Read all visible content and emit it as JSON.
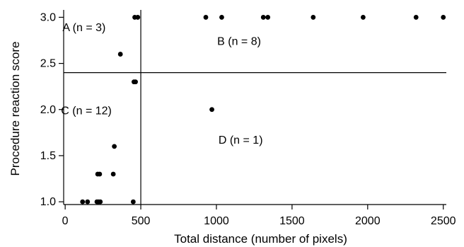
{
  "chart_data": {
    "type": "scatter",
    "xlabel": "Total distance (number of pixels)",
    "ylabel": "Procedure reaction score",
    "xlim": [
      -10,
      2520
    ],
    "ylim": [
      0.97,
      3.08
    ],
    "x_ticks": [
      0,
      500,
      1000,
      1500,
      2000,
      2500
    ],
    "y_ticks": [
      1.0,
      1.5,
      2.0,
      2.5,
      3.0
    ],
    "x_tick_labels": [
      "0",
      "500",
      "1000",
      "1500",
      "2000",
      "2500"
    ],
    "y_tick_labels": [
      "1.0",
      "1.5",
      "2.0",
      "2.5",
      "3.0"
    ],
    "grid": false,
    "reference_lines": {
      "vertical_x": 500,
      "horizontal_y": 2.4
    },
    "quadrant_labels": [
      {
        "label": "A (n = 3)",
        "x": 125,
        "y": 2.85
      },
      {
        "label": "B (n = 8)",
        "x": 1150,
        "y": 2.7
      },
      {
        "label": "C (n = 12)",
        "x": 140,
        "y": 1.95
      },
      {
        "label": "D (n = 1)",
        "x": 1160,
        "y": 1.63
      }
    ],
    "points": [
      {
        "x": 460,
        "y": 3.0
      },
      {
        "x": 480,
        "y": 3.0
      },
      {
        "x": 930,
        "y": 3.0
      },
      {
        "x": 1035,
        "y": 3.0
      },
      {
        "x": 1310,
        "y": 3.0
      },
      {
        "x": 1340,
        "y": 3.0
      },
      {
        "x": 1640,
        "y": 3.0
      },
      {
        "x": 1970,
        "y": 3.0
      },
      {
        "x": 2320,
        "y": 3.0
      },
      {
        "x": 2500,
        "y": 3.0
      },
      {
        "x": 365,
        "y": 2.6
      },
      {
        "x": 455,
        "y": 2.3
      },
      {
        "x": 465,
        "y": 2.3
      },
      {
        "x": 970,
        "y": 2.0
      },
      {
        "x": 325,
        "y": 1.6
      },
      {
        "x": 215,
        "y": 1.3
      },
      {
        "x": 228,
        "y": 1.3
      },
      {
        "x": 318,
        "y": 1.3
      },
      {
        "x": 115,
        "y": 1.0
      },
      {
        "x": 148,
        "y": 1.0
      },
      {
        "x": 210,
        "y": 1.0
      },
      {
        "x": 220,
        "y": 1.0
      },
      {
        "x": 232,
        "y": 1.0
      },
      {
        "x": 450,
        "y": 1.0
      }
    ]
  }
}
